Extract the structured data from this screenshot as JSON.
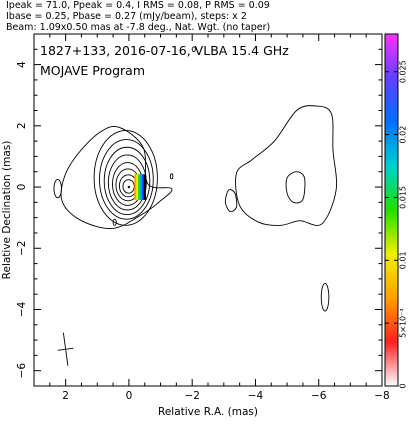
{
  "header": {
    "line1": "Ipeak = 71.0, Ppeak = 0.4, I RMS = 0.08, P RMS = 0.09",
    "line2": "Ibase = 0.25, Pbase = 0.27 (mJy/beam), steps: x 2",
    "line3": "Beam: 1.09x0.50 mas at -7.8 deg., Nat. Wgt. (no taper)"
  },
  "chart_data": {
    "type": "contour",
    "annotations": {
      "source_line": "1827+133, 2016-07-16, VLBA 15.4 GHz",
      "program": "MOJAVE Program"
    },
    "xlabel": "Relative R.A. (mas)",
    "ylabel": "Relative Declination (mas)",
    "xlim": [
      3,
      -8
    ],
    "ylim": [
      -6.5,
      5
    ],
    "x_ticks": [
      2,
      0,
      -2,
      -4,
      -6,
      -8
    ],
    "y_ticks": [
      4,
      2,
      0,
      -2,
      -4,
      -6
    ],
    "colorbar": {
      "min": 0,
      "max": 0.028,
      "ticks": [
        0,
        0.005,
        0.01,
        0.015,
        0.02,
        0.025
      ],
      "tick_labels": [
        "0",
        "5×10⁻³",
        "0.01",
        "0.015",
        "0.02",
        "0.025"
      ],
      "colors": [
        "#ffffff",
        "#ff2020",
        "#ffa000",
        "#f0f000",
        "#20e000",
        "#00d0d0",
        "#0070ff",
        "#6040ff",
        "#ff30ff"
      ]
    },
    "core": {
      "x": 0,
      "y": 0
    },
    "beam": {
      "major_mas": 1.09,
      "minor_mas": 0.5,
      "pa_deg": -7.8,
      "center": [
        2.0,
        -5.3
      ]
    },
    "contour_base_mJy": 0.25,
    "contour_step": 2,
    "core_contours": [
      {
        "cx": 0.1,
        "cy": 0.3,
        "rx": 1.0,
        "ry": 1.55
      },
      {
        "cx": 0.08,
        "cy": 0.25,
        "rx": 0.85,
        "ry": 1.3
      },
      {
        "cx": 0.06,
        "cy": 0.2,
        "rx": 0.72,
        "ry": 1.1
      },
      {
        "cx": 0.05,
        "cy": 0.15,
        "rx": 0.6,
        "ry": 0.9
      },
      {
        "cx": 0.04,
        "cy": 0.1,
        "rx": 0.48,
        "ry": 0.7
      },
      {
        "cx": 0.03,
        "cy": 0.07,
        "rx": 0.38,
        "ry": 0.52
      },
      {
        "cx": 0.02,
        "cy": 0.04,
        "rx": 0.28,
        "ry": 0.36
      },
      {
        "cx": 0.01,
        "cy": 0.02,
        "rx": 0.18,
        "ry": 0.22
      }
    ],
    "outer_envelope": [
      [
        0.9,
        1.8
      ],
      [
        1.6,
        1.1
      ],
      [
        2.05,
        0.3
      ],
      [
        2.1,
        -0.5
      ],
      [
        1.5,
        -1.1
      ],
      [
        0.5,
        -1.35
      ],
      [
        -0.4,
        -0.9
      ],
      [
        -1.0,
        -0.45
      ],
      [
        -1.35,
        -0.05
      ],
      [
        -0.6,
        0.1
      ],
      [
        -0.45,
        1.3
      ],
      [
        0.3,
        1.95
      ]
    ],
    "jet_contours": [
      [
        [
          -3.5,
          -0.6
        ],
        [
          -3.4,
          0.45
        ],
        [
          -3.9,
          0.9
        ],
        [
          -4.6,
          1.5
        ],
        [
          -5.3,
          2.5
        ],
        [
          -5.9,
          2.65
        ],
        [
          -6.4,
          2.4
        ],
        [
          -6.45,
          1.2
        ],
        [
          -6.55,
          -0.1
        ],
        [
          -6.1,
          -1.2
        ],
        [
          -5.4,
          -1.1
        ],
        [
          -4.8,
          -1.25
        ],
        [
          -4.1,
          -1.15
        ]
      ],
      [
        [
          -5.0,
          0.3
        ],
        [
          -5.3,
          0.5
        ],
        [
          -5.55,
          0.3
        ],
        [
          -5.5,
          -0.4
        ],
        [
          -5.2,
          -0.5
        ],
        [
          -5.0,
          -0.2
        ]
      ],
      [
        [
          -3.15,
          -0.1
        ],
        [
          -3.35,
          -0.2
        ],
        [
          -3.4,
          -0.65
        ],
        [
          -3.2,
          -0.8
        ],
        [
          -3.05,
          -0.5
        ]
      ]
    ],
    "small_contours": [
      {
        "cx": 2.25,
        "cy": -0.05,
        "rx": 0.12,
        "ry": 0.3
      },
      {
        "cx": -6.2,
        "cy": -3.6,
        "rx": 0.12,
        "ry": 0.45
      },
      {
        "cx": -1.35,
        "cy": 0.35,
        "rx": 0.04,
        "ry": 0.08
      },
      {
        "cx": 0.45,
        "cy": -1.15,
        "rx": 0.05,
        "ry": 0.1
      },
      {
        "cx": -2.05,
        "cy": 4.5,
        "rx": 0.05,
        "ry": 0.08
      }
    ],
    "polarization_blob": {
      "cx": -0.35,
      "cy": 0.0,
      "rx": 0.18,
      "ry": 0.42
    }
  }
}
